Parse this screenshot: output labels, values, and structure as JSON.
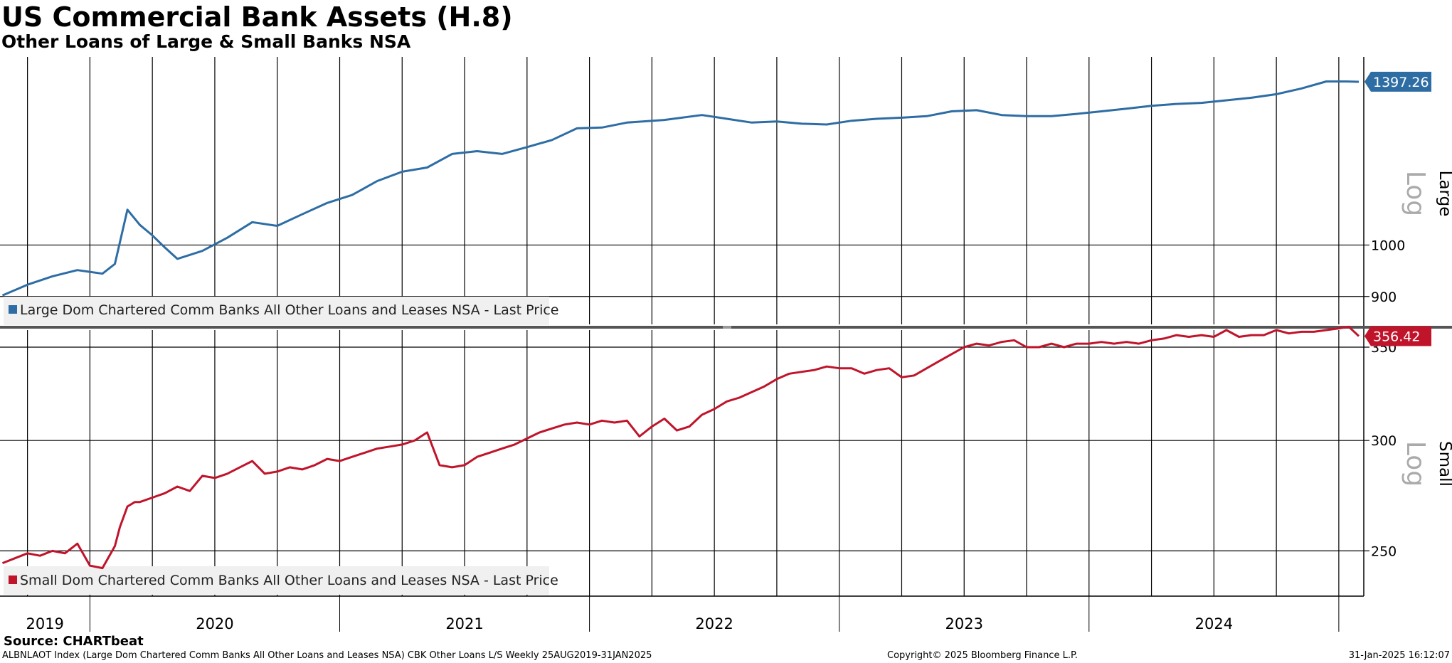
{
  "header": {
    "title": "US Commercial Bank Assets (H.8)",
    "subtitle": "Other Loans of Large & Small Banks NSA"
  },
  "footer": {
    "source": "Source: CHARTbeat",
    "ticker_line": "ALBNLAOT Index (Large Dom Chartered Comm Banks All Other Loans and Leases NSA) CBK Other Loans L/S  Weekly 25AUG2019-31JAN2025",
    "copyright": "Copyright© 2025 Bloomberg Finance L.P.",
    "timestamp": "31-Jan-2025 16:12:07"
  },
  "colors": {
    "large": "#2e6da4",
    "small": "#c0142b"
  },
  "chart_data": [
    {
      "type": "line",
      "scale": "log",
      "panel_label": "Large",
      "scale_label": "Log",
      "series_name": "Large Dom Chartered Comm Banks All Other Loans and Leases NSA - Last Price",
      "last_value": "1397.26",
      "ylim": [
        850,
        1470
      ],
      "yticks": [
        900,
        1000
      ],
      "x_range": [
        2019.64,
        2025.1
      ],
      "x": [
        2019.65,
        2019.75,
        2019.85,
        2019.95,
        2020.05,
        2020.1,
        2020.15,
        2020.2,
        2020.25,
        2020.3,
        2020.35,
        2020.45,
        2020.55,
        2020.65,
        2020.75,
        2020.85,
        2020.95,
        2021.05,
        2021.15,
        2021.25,
        2021.35,
        2021.45,
        2021.55,
        2021.65,
        2021.75,
        2021.85,
        2021.95,
        2022.05,
        2022.15,
        2022.3,
        2022.45,
        2022.55,
        2022.65,
        2022.75,
        2022.85,
        2022.95,
        2023.05,
        2023.15,
        2023.25,
        2023.35,
        2023.45,
        2023.55,
        2023.65,
        2023.75,
        2023.85,
        2023.95,
        2024.05,
        2024.15,
        2024.25,
        2024.35,
        2024.45,
        2024.55,
        2024.65,
        2024.75,
        2024.85,
        2024.95,
        2025.03,
        2025.08
      ],
      "values": [
        902,
        922,
        938,
        950,
        943,
        962,
        1075,
        1042,
        1020,
        995,
        972,
        988,
        1015,
        1048,
        1040,
        1065,
        1090,
        1108,
        1140,
        1162,
        1172,
        1205,
        1212,
        1205,
        1222,
        1240,
        1270,
        1272,
        1285,
        1292,
        1305,
        1295,
        1285,
        1288,
        1282,
        1280,
        1290,
        1295,
        1298,
        1302,
        1315,
        1318,
        1305,
        1302,
        1302,
        1308,
        1315,
        1322,
        1330,
        1335,
        1338,
        1345,
        1352,
        1362,
        1378,
        1398,
        1398,
        1397
      ]
    },
    {
      "type": "line",
      "scale": "log",
      "panel_label": "Small",
      "scale_label": "Log",
      "series_name": "Small Dom Chartered Comm Banks All Other Loans and Leases NSA - Last Price",
      "last_value": "356.42",
      "ylim": [
        232,
        360
      ],
      "yticks": [
        250,
        300,
        350
      ],
      "x_range": [
        2019.64,
        2025.1
      ],
      "x": [
        2019.65,
        2019.7,
        2019.75,
        2019.8,
        2019.85,
        2019.9,
        2019.95,
        2020.0,
        2020.05,
        2020.1,
        2020.12,
        2020.15,
        2020.18,
        2020.2,
        2020.25,
        2020.3,
        2020.35,
        2020.4,
        2020.45,
        2020.5,
        2020.55,
        2020.6,
        2020.65,
        2020.7,
        2020.75,
        2020.8,
        2020.85,
        2020.9,
        2020.95,
        2021.0,
        2021.05,
        2021.1,
        2021.15,
        2021.2,
        2021.25,
        2021.3,
        2021.35,
        2021.4,
        2021.45,
        2021.5,
        2021.55,
        2021.6,
        2021.65,
        2021.7,
        2021.75,
        2021.8,
        2021.85,
        2021.9,
        2021.95,
        2022.0,
        2022.05,
        2022.1,
        2022.15,
        2022.2,
        2022.25,
        2022.3,
        2022.35,
        2022.4,
        2022.45,
        2022.5,
        2022.55,
        2022.6,
        2022.65,
        2022.7,
        2022.75,
        2022.8,
        2022.85,
        2022.9,
        2022.95,
        2023.0,
        2023.05,
        2023.1,
        2023.15,
        2023.2,
        2023.25,
        2023.3,
        2023.35,
        2023.4,
        2023.45,
        2023.5,
        2023.55,
        2023.6,
        2023.65,
        2023.7,
        2023.75,
        2023.8,
        2023.85,
        2023.9,
        2023.95,
        2024.0,
        2024.05,
        2024.1,
        2024.15,
        2024.2,
        2024.25,
        2024.3,
        2024.35,
        2024.4,
        2024.45,
        2024.5,
        2024.55,
        2024.6,
        2024.65,
        2024.7,
        2024.75,
        2024.8,
        2024.85,
        2024.9,
        2024.95,
        2025.0,
        2025.04,
        2025.08
      ],
      "values": [
        245,
        247,
        249,
        248,
        250,
        249,
        253,
        244,
        243,
        252,
        260,
        269,
        271,
        271,
        273,
        275,
        278,
        276,
        283,
        282,
        284,
        287,
        290,
        284,
        285,
        287,
        286,
        288,
        291,
        290,
        292,
        294,
        296,
        297,
        298,
        300,
        304,
        288,
        287,
        288,
        292,
        294,
        296,
        298,
        301,
        304,
        306,
        308,
        309,
        308,
        310,
        309,
        310,
        302,
        307,
        311,
        305,
        307,
        313,
        316,
        320,
        322,
        325,
        328,
        332,
        335,
        336,
        337,
        339,
        338,
        338,
        335,
        337,
        338,
        333,
        334,
        338,
        342,
        346,
        350,
        352,
        351,
        353,
        354,
        350,
        350,
        352,
        350,
        352,
        352,
        353,
        352,
        353,
        352,
        354,
        355,
        357,
        356,
        357,
        356,
        360,
        356,
        357,
        357,
        360,
        358,
        359,
        359,
        360,
        361,
        362,
        356.42
      ]
    }
  ],
  "x_axis": {
    "labels": [
      "2019",
      "2020",
      "2021",
      "2022",
      "2023",
      "2024"
    ],
    "year_boundaries": [
      2020,
      2021,
      2022,
      2023,
      2024,
      2025
    ],
    "gridlines": [
      2019.75,
      2020.0,
      2020.25,
      2020.5,
      2020.75,
      2021.0,
      2021.25,
      2021.5,
      2021.75,
      2022.0,
      2022.25,
      2022.5,
      2022.75,
      2023.0,
      2023.25,
      2023.5,
      2023.75,
      2024.0,
      2024.25,
      2024.5,
      2024.75,
      2025.0
    ]
  }
}
